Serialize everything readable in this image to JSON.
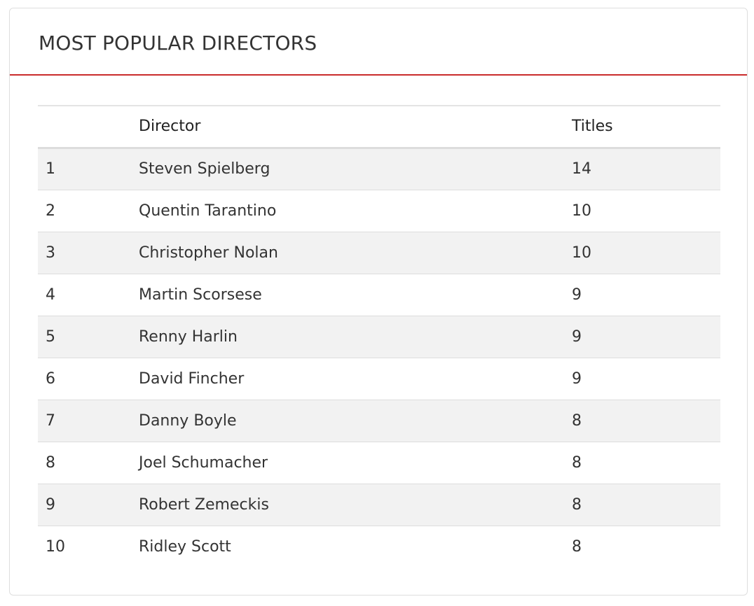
{
  "panel": {
    "title": "MOST POPULAR DIRECTORS"
  },
  "table": {
    "headers": {
      "rank": "",
      "director": "Director",
      "titles": "Titles"
    },
    "rows": [
      {
        "rank": "1",
        "director": "Steven Spielberg",
        "titles": "14"
      },
      {
        "rank": "2",
        "director": "Quentin Tarantino",
        "titles": "10"
      },
      {
        "rank": "3",
        "director": "Christopher Nolan",
        "titles": "10"
      },
      {
        "rank": "4",
        "director": "Martin Scorsese",
        "titles": "9"
      },
      {
        "rank": "5",
        "director": "Renny Harlin",
        "titles": "9"
      },
      {
        "rank": "6",
        "director": "David Fincher",
        "titles": "9"
      },
      {
        "rank": "7",
        "director": "Danny Boyle",
        "titles": "8"
      },
      {
        "rank": "8",
        "director": "Joel Schumacher",
        "titles": "8"
      },
      {
        "rank": "9",
        "director": "Robert Zemeckis",
        "titles": "8"
      },
      {
        "rank": "10",
        "director": "Ridley Scott",
        "titles": "8"
      }
    ]
  },
  "colors": {
    "accent": "#c92b2b",
    "stripe": "#f2f2f2",
    "text": "#333333"
  }
}
